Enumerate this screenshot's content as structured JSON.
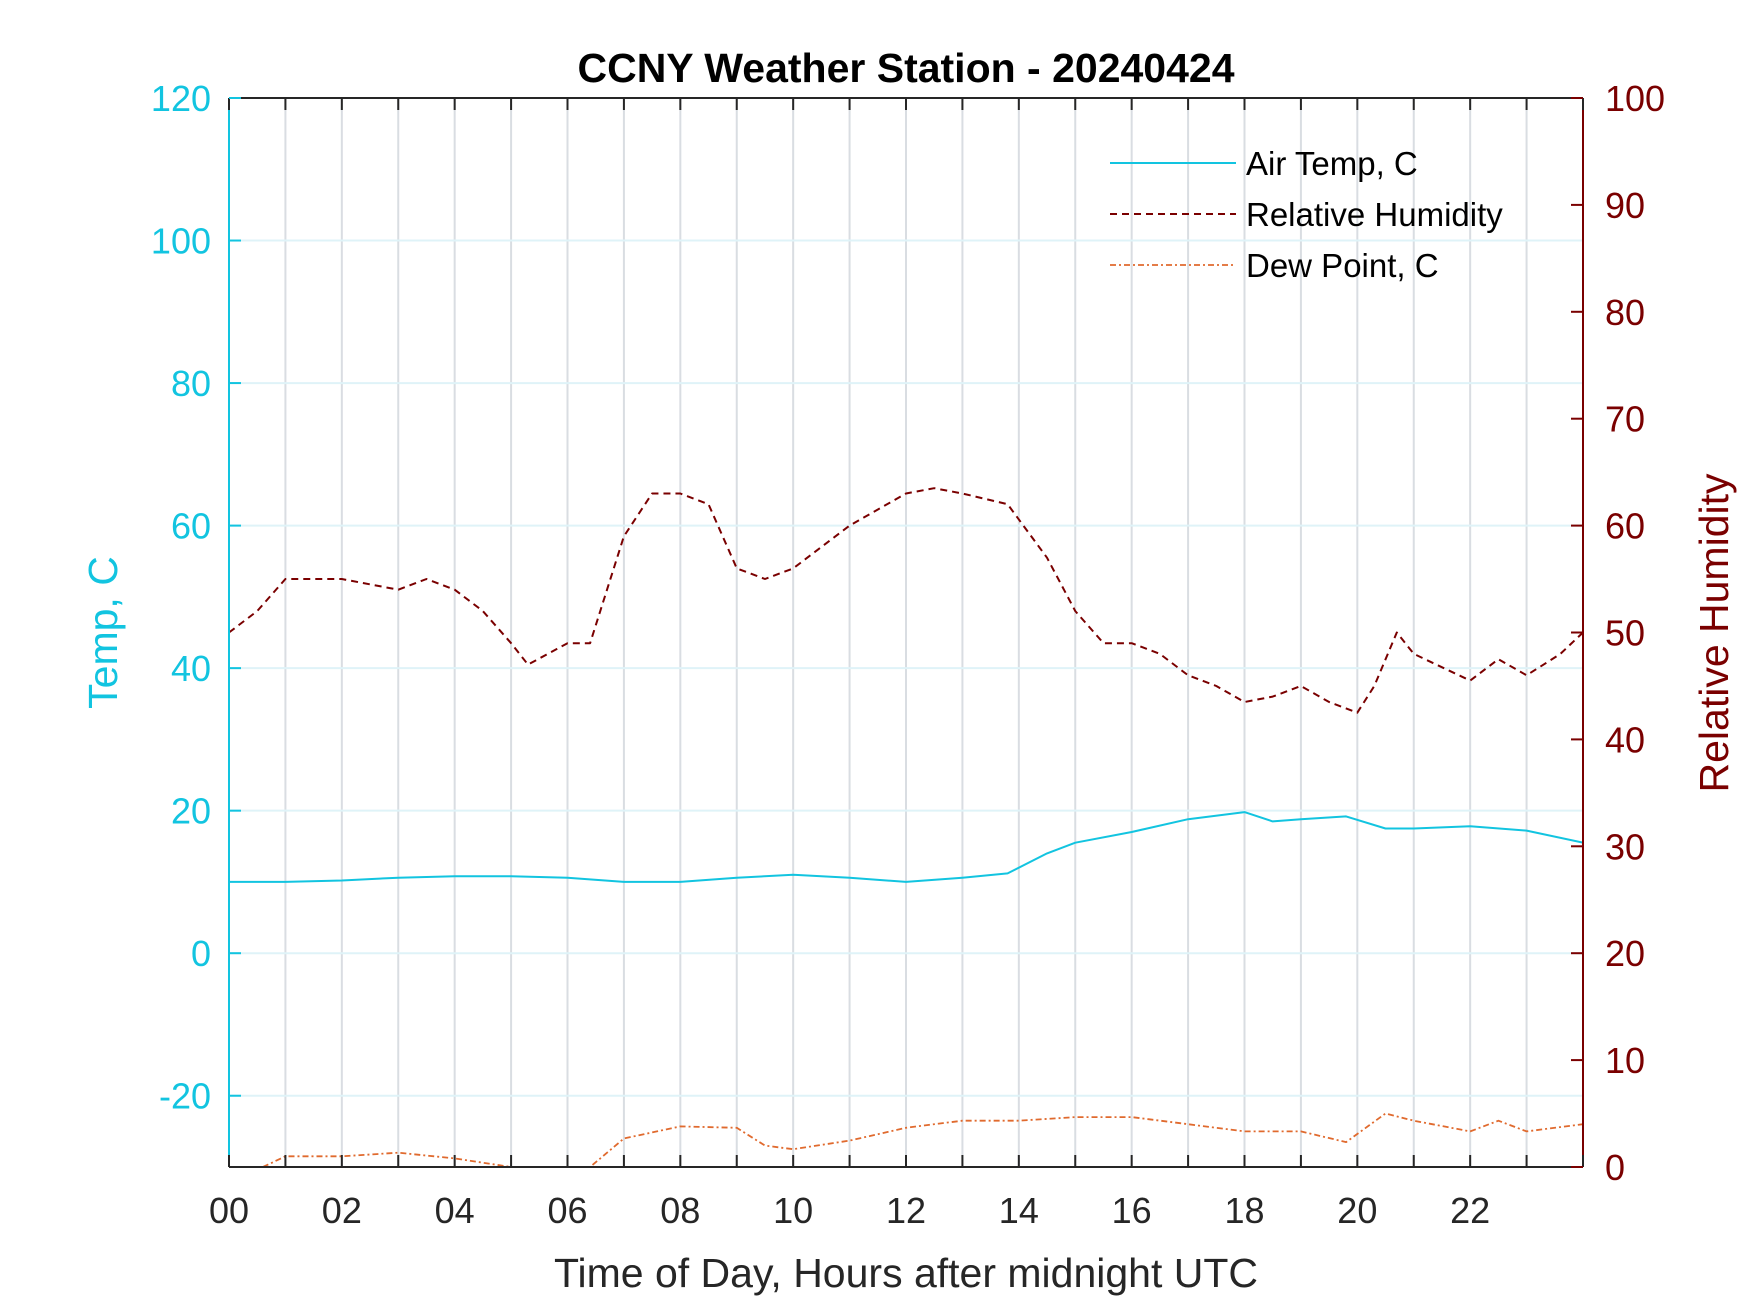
{
  "chart_data": {
    "type": "line",
    "title": "CCNY Weather Station - 20240424",
    "xlabel": "Time of Day, Hours after midnight UTC",
    "ylabel_left": "Temp, C",
    "ylabel_right": "Relative Humidity",
    "xlim": [
      0,
      24
    ],
    "ylim_left": [
      -30,
      120
    ],
    "ylim_right": [
      0,
      100
    ],
    "x_tick_labels": [
      "00",
      "02",
      "04",
      "06",
      "08",
      "10",
      "12",
      "14",
      "16",
      "18",
      "20",
      "22"
    ],
    "y_left_tick_labels": [
      "-20",
      "0",
      "20",
      "40",
      "60",
      "80",
      "100",
      "120"
    ],
    "y_right_tick_labels": [
      "0",
      "10",
      "20",
      "30",
      "40",
      "50",
      "60",
      "70",
      "80",
      "90",
      "100"
    ],
    "grid": "vertical every hour, horizontal every 20 C",
    "legend_position": "top-right",
    "colors": {
      "air_temp": "#12c4e0",
      "relative_humidity": "#7a0000",
      "dew_point": "#e06a2e",
      "right_axis": "#7a0000",
      "left_axis": "#12c4e0"
    },
    "series": [
      {
        "name": "Air Temp, C",
        "axis": "left",
        "style": "solid",
        "x": [
          0,
          1,
          2,
          3,
          4,
          5,
          6,
          7,
          8,
          9,
          10,
          11,
          12,
          13,
          13.8,
          14.5,
          15,
          16,
          17,
          18,
          18.5,
          19,
          19.8,
          20.5,
          21,
          22,
          23,
          24
        ],
        "y": [
          10,
          10,
          10.2,
          10.6,
          10.8,
          10.8,
          10.6,
          10,
          10,
          10.6,
          11,
          10.6,
          10,
          10.6,
          11.2,
          14,
          15.5,
          17,
          18.8,
          19.8,
          18.5,
          18.8,
          19.2,
          17.5,
          17.5,
          17.8,
          17.2,
          15.5
        ]
      },
      {
        "name": "Relative Humidity",
        "axis": "right",
        "style": "dashed",
        "x": [
          0,
          0.5,
          1,
          2,
          3,
          3.5,
          4,
          4.5,
          5,
          5.3,
          6,
          6.4,
          7,
          7.5,
          8,
          8.5,
          9,
          9.5,
          10,
          11,
          12,
          12.5,
          13,
          13.8,
          14.5,
          15,
          15.5,
          16,
          16.5,
          17,
          17.5,
          18,
          18.5,
          19,
          19.5,
          20,
          20.3,
          20.7,
          21,
          22,
          22.5,
          23,
          23.6,
          24
        ],
        "y": [
          50,
          52,
          55,
          55,
          54,
          55,
          54,
          52,
          49,
          47,
          49,
          49,
          59,
          63,
          63,
          62,
          56,
          55,
          56,
          60,
          63,
          63.5,
          63,
          62,
          57,
          52,
          49,
          49,
          48,
          46,
          45,
          43.5,
          44,
          45,
          43.5,
          42.5,
          45,
          50,
          48,
          45.5,
          47.5,
          46,
          48,
          50
        ]
      },
      {
        "name": "Dew Point, C",
        "axis": "left",
        "style": "dash-dot",
        "x": [
          0.6,
          1,
          2,
          3,
          4,
          5,
          5.6,
          6,
          6.4,
          7,
          8,
          9,
          9.5,
          10,
          11,
          12,
          13,
          14,
          15,
          16,
          17,
          18,
          19,
          19.8,
          20.5,
          21,
          22,
          22.5,
          23,
          24
        ],
        "y": [
          -30,
          -28.5,
          -28.5,
          -28,
          -28.8,
          -30,
          -30,
          -31,
          -30,
          -26,
          -24.3,
          -24.5,
          -27,
          -27.5,
          -26.3,
          -24.5,
          -23.5,
          -23.5,
          -23,
          -23,
          -24,
          -25,
          -25,
          -26.5,
          -22.5,
          -23.5,
          -25,
          -23.5,
          -25,
          -24
        ]
      }
    ]
  }
}
